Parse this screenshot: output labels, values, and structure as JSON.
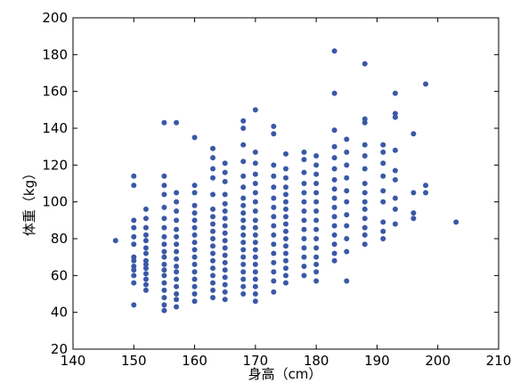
{
  "chart_data": {
    "type": "scatter",
    "x_label": "身高（cm）",
    "y_label": "体重（kg）",
    "color": "#3a58a6",
    "xlim": [
      140,
      210
    ],
    "xticks": [
      140,
      150,
      160,
      170,
      180,
      190,
      200,
      210
    ],
    "ylim": [
      20,
      200
    ],
    "yticks": [
      20,
      40,
      60,
      80,
      100,
      120,
      140,
      160,
      180,
      200
    ],
    "x": [
      147,
      150,
      150,
      150,
      150,
      150,
      150,
      150,
      150,
      150,
      150,
      150,
      150,
      150,
      152,
      152,
      152,
      152,
      152,
      152,
      152,
      152,
      152,
      152,
      152,
      152,
      152,
      152,
      155,
      155,
      155,
      155,
      155,
      155,
      155,
      155,
      155,
      155,
      155,
      155,
      155,
      155,
      155,
      155,
      155,
      155,
      155,
      157,
      157,
      157,
      157,
      157,
      157,
      157,
      157,
      157,
      157,
      157,
      157,
      157,
      157,
      157,
      157,
      157,
      160,
      160,
      160,
      160,
      160,
      160,
      160,
      160,
      160,
      160,
      160,
      160,
      160,
      160,
      160,
      160,
      160,
      163,
      163,
      163,
      163,
      163,
      163,
      163,
      163,
      163,
      163,
      163,
      163,
      163,
      163,
      163,
      163,
      163,
      163,
      165,
      165,
      165,
      165,
      165,
      165,
      165,
      165,
      165,
      165,
      165,
      165,
      165,
      165,
      165,
      165,
      165,
      165,
      168,
      168,
      168,
      168,
      168,
      168,
      168,
      168,
      168,
      168,
      168,
      168,
      168,
      168,
      168,
      168,
      168,
      168,
      168,
      168,
      170,
      170,
      170,
      170,
      170,
      170,
      170,
      170,
      170,
      170,
      170,
      170,
      170,
      170,
      170,
      170,
      170,
      170,
      170,
      170,
      173,
      173,
      173,
      173,
      173,
      173,
      173,
      173,
      173,
      173,
      173,
      173,
      173,
      173,
      173,
      173,
      175,
      175,
      175,
      175,
      175,
      175,
      175,
      175,
      175,
      175,
      175,
      175,
      175,
      175,
      175,
      175,
      175,
      178,
      178,
      178,
      178,
      178,
      178,
      178,
      178,
      178,
      178,
      178,
      178,
      178,
      178,
      180,
      180,
      180,
      180,
      180,
      180,
      180,
      180,
      180,
      180,
      180,
      180,
      180,
      180,
      180,
      183,
      183,
      183,
      183,
      183,
      183,
      183,
      183,
      183,
      183,
      183,
      183,
      183,
      183,
      183,
      183,
      185,
      185,
      185,
      185,
      185,
      185,
      185,
      185,
      185,
      185,
      185,
      188,
      188,
      188,
      188,
      188,
      188,
      188,
      188,
      188,
      188,
      188,
      188,
      188,
      188,
      191,
      191,
      191,
      191,
      191,
      191,
      191,
      191,
      191,
      193,
      193,
      193,
      193,
      193,
      193,
      193,
      193,
      193,
      196,
      196,
      196,
      196,
      198,
      198,
      198,
      203
    ],
    "y": [
      79,
      44,
      56,
      60,
      63,
      65,
      68,
      70,
      77,
      81,
      86,
      90,
      109,
      114,
      52,
      55,
      58,
      61,
      64,
      66,
      68,
      72,
      75,
      79,
      82,
      86,
      91,
      96,
      41,
      44,
      48,
      52,
      56,
      60,
      63,
      66,
      70,
      73,
      77,
      81,
      86,
      91,
      97,
      104,
      109,
      114,
      143,
      43,
      47,
      50,
      54,
      58,
      62,
      65,
      69,
      73,
      77,
      81,
      85,
      90,
      95,
      100,
      105,
      143,
      46,
      50,
      54,
      58,
      62,
      66,
      70,
      74,
      78,
      82,
      86,
      90,
      94,
      98,
      105,
      109,
      135,
      48,
      52,
      56,
      60,
      64,
      68,
      72,
      76,
      80,
      84,
      88,
      92,
      96,
      104,
      113,
      118,
      124,
      129,
      47,
      51,
      55,
      59,
      63,
      67,
      71,
      75,
      79,
      83,
      87,
      91,
      95,
      99,
      104,
      111,
      116,
      121,
      50,
      54,
      58,
      62,
      66,
      70,
      74,
      78,
      82,
      86,
      90,
      94,
      98,
      102,
      108,
      114,
      122,
      131,
      140,
      144,
      46,
      50,
      54,
      58,
      62,
      66,
      70,
      74,
      78,
      82,
      86,
      90,
      95,
      100,
      105,
      110,
      115,
      121,
      127,
      150,
      51,
      57,
      62,
      67,
      72,
      77,
      82,
      87,
      92,
      97,
      102,
      108,
      114,
      120,
      137,
      141,
      56,
      60,
      64,
      68,
      72,
      76,
      80,
      84,
      88,
      92,
      96,
      100,
      104,
      108,
      113,
      118,
      126,
      60,
      65,
      70,
      75,
      80,
      85,
      90,
      95,
      100,
      105,
      110,
      116,
      123,
      127,
      57,
      62,
      66,
      70,
      75,
      80,
      85,
      90,
      95,
      100,
      105,
      110,
      115,
      120,
      125,
      68,
      72,
      77,
      82,
      87,
      92,
      97,
      102,
      107,
      112,
      118,
      124,
      130,
      139,
      159,
      182,
      57,
      73,
      80,
      87,
      93,
      100,
      106,
      113,
      120,
      127,
      134,
      77,
      82,
      86,
      91,
      96,
      100,
      105,
      110,
      118,
      125,
      131,
      143,
      145,
      175,
      80,
      84,
      89,
      100,
      106,
      114,
      121,
      127,
      131,
      88,
      96,
      102,
      112,
      117,
      128,
      146,
      148,
      159,
      91,
      94,
      105,
      137,
      105,
      109,
      164,
      89
    ]
  }
}
